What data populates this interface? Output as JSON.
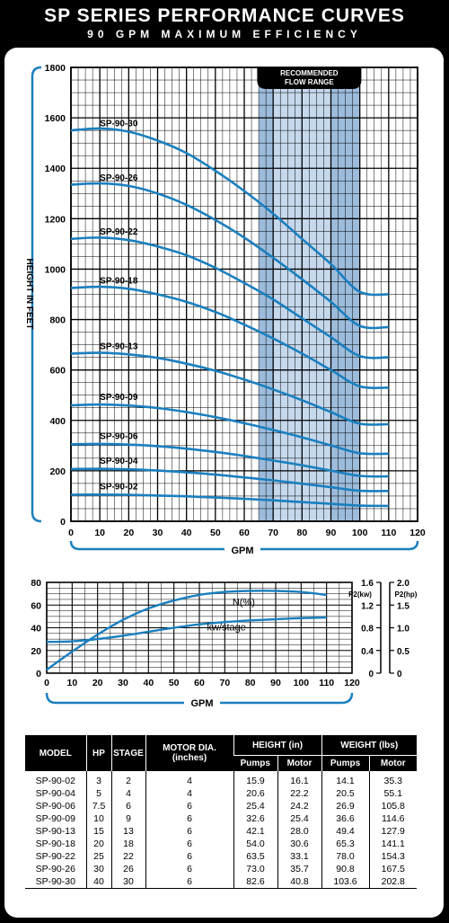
{
  "header": {
    "title": "SP SERIES PERFORMANCE CURVES",
    "subtitle": "90 GPM MAXIMUM EFFICIENCY"
  },
  "colors": {
    "curve": "#1a7fbf",
    "frame": "#1a7fbf",
    "band": "#c5d8ec",
    "band_dark": "#9dbcdc",
    "text": "#000000"
  },
  "chart_data": [
    {
      "type": "line",
      "title": "",
      "xlabel": "GPM",
      "ylabel": "HEIGHT IN FEET",
      "xlim": [
        0,
        120
      ],
      "ylim": [
        0,
        1800
      ],
      "x_ticks": [
        "0",
        "10",
        "20",
        "30",
        "40",
        "50",
        "60",
        "70",
        "80",
        "90",
        "100",
        "110",
        "120"
      ],
      "y_ticks": [
        "0",
        "200",
        "400",
        "600",
        "800",
        "1000",
        "1200",
        "1400",
        "1600",
        "1800"
      ],
      "grid": true,
      "annotation": {
        "text_line1": "RECOMMENDED",
        "text_line2": "FLOW RANGE",
        "x_range": [
          65,
          100
        ]
      },
      "x": [
        0,
        10,
        20,
        30,
        40,
        50,
        60,
        70,
        80,
        90,
        100,
        110
      ],
      "series": [
        {
          "name": "SP-90-30",
          "values": [
            1550,
            1558,
            1545,
            1510,
            1460,
            1390,
            1310,
            1220,
            1120,
            1020,
            910,
            900
          ]
        },
        {
          "name": "SP-90-26",
          "values": [
            1335,
            1340,
            1330,
            1300,
            1255,
            1195,
            1125,
            1045,
            960,
            870,
            775,
            770
          ]
        },
        {
          "name": "SP-90-22",
          "values": [
            1120,
            1125,
            1115,
            1090,
            1055,
            1005,
            945,
            880,
            805,
            730,
            655,
            650
          ]
        },
        {
          "name": "SP-90-18",
          "values": [
            925,
            930,
            922,
            900,
            870,
            830,
            780,
            725,
            665,
            600,
            535,
            530
          ]
        },
        {
          "name": "SP-90-13",
          "values": [
            665,
            668,
            662,
            648,
            625,
            597,
            562,
            523,
            480,
            433,
            387,
            385
          ]
        },
        {
          "name": "SP-90-09",
          "values": [
            460,
            463,
            459,
            449,
            433,
            413,
            389,
            362,
            333,
            301,
            270,
            268
          ]
        },
        {
          "name": "SP-90-06",
          "values": [
            305,
            307,
            304,
            298,
            288,
            275,
            259,
            241,
            222,
            201,
            180,
            178
          ]
        },
        {
          "name": "SP-90-04",
          "values": [
            207,
            208,
            206,
            201,
            194,
            185,
            174,
            162,
            149,
            135,
            121,
            120
          ]
        },
        {
          "name": "SP-90-02",
          "values": [
            105,
            106,
            105,
            102,
            99,
            94,
            89,
            83,
            76,
            69,
            62,
            61
          ]
        }
      ]
    },
    {
      "type": "line",
      "title": "",
      "xlabel": "GPM",
      "ylabel": "",
      "xlim": [
        0,
        120
      ],
      "ylim": [
        0,
        80
      ],
      "x_ticks": [
        "0",
        "10",
        "20",
        "30",
        "40",
        "50",
        "60",
        "70",
        "80",
        "90",
        "100",
        "110",
        "120"
      ],
      "y_ticks_left": [
        "0",
        "20",
        "40",
        "60",
        "80"
      ],
      "right_axis_1": {
        "label": "P2(kw)",
        "ticks": [
          "0",
          "0.4",
          "0.8",
          "1.2",
          "1.6"
        ]
      },
      "right_axis_2": {
        "label": "P2(hp)",
        "ticks": [
          "0",
          "0.5",
          "1.0",
          "1.5",
          "2.0"
        ]
      },
      "grid": true,
      "x": [
        0,
        10,
        20,
        30,
        40,
        50,
        60,
        70,
        80,
        90,
        100,
        110
      ],
      "series": [
        {
          "name": "N(%)",
          "axis": "left",
          "values": [
            3,
            19,
            34,
            47,
            57,
            64,
            69,
            71.5,
            72.5,
            72.5,
            71.5,
            69
          ]
        },
        {
          "name": "kw/stage",
          "axis": "P2(kw)",
          "values": [
            0.55,
            0.56,
            0.6,
            0.66,
            0.73,
            0.8,
            0.86,
            0.9,
            0.93,
            0.95,
            0.97,
            0.98
          ]
        }
      ]
    }
  ],
  "table": {
    "headers": {
      "model": "MODEL",
      "hp": "HP",
      "stage": "STAGE",
      "motor_dia": "MOTOR DIA.",
      "motor_dia_unit": "(inches)",
      "height": "HEIGHT (in)",
      "weight": "WEIGHT (lbs)",
      "pumps": "Pumps",
      "motor": "Motor"
    },
    "rows": [
      {
        "model": "SP-90-02",
        "hp": "3",
        "stage": "2",
        "motor_dia": "4",
        "height_pumps": "15.9",
        "height_motor": "16.1",
        "weight_pumps": "14.1",
        "weight_motor": "35.3"
      },
      {
        "model": "SP-90-04",
        "hp": "5",
        "stage": "4",
        "motor_dia": "4",
        "height_pumps": "20.6",
        "height_motor": "22.2",
        "weight_pumps": "20.5",
        "weight_motor": "55.1"
      },
      {
        "model": "SP-90-06",
        "hp": "7.5",
        "stage": "6",
        "motor_dia": "6",
        "height_pumps": "25.4",
        "height_motor": "24.2",
        "weight_pumps": "26.9",
        "weight_motor": "105.8"
      },
      {
        "model": "SP-90-09",
        "hp": "10",
        "stage": "9",
        "motor_dia": "6",
        "height_pumps": "32.6",
        "height_motor": "25.4",
        "weight_pumps": "36.6",
        "weight_motor": "114.6"
      },
      {
        "model": "SP-90-13",
        "hp": "15",
        "stage": "13",
        "motor_dia": "6",
        "height_pumps": "42.1",
        "height_motor": "28.0",
        "weight_pumps": "49.4",
        "weight_motor": "127.9"
      },
      {
        "model": "SP-90-18",
        "hp": "20",
        "stage": "18",
        "motor_dia": "6",
        "height_pumps": "54.0",
        "height_motor": "30.6",
        "weight_pumps": "65.3",
        "weight_motor": "141.1"
      },
      {
        "model": "SP-90-22",
        "hp": "25",
        "stage": "22",
        "motor_dia": "6",
        "height_pumps": "63.5",
        "height_motor": "33.1",
        "weight_pumps": "78.0",
        "weight_motor": "154.3"
      },
      {
        "model": "SP-90-26",
        "hp": "30",
        "stage": "26",
        "motor_dia": "6",
        "height_pumps": "73.0",
        "height_motor": "35.7",
        "weight_pumps": "90.8",
        "weight_motor": "167.5"
      },
      {
        "model": "SP-90-30",
        "hp": "40",
        "stage": "30",
        "motor_dia": "6",
        "height_pumps": "82.6",
        "height_motor": "40.8",
        "weight_pumps": "103.6",
        "weight_motor": "202.8"
      }
    ]
  }
}
